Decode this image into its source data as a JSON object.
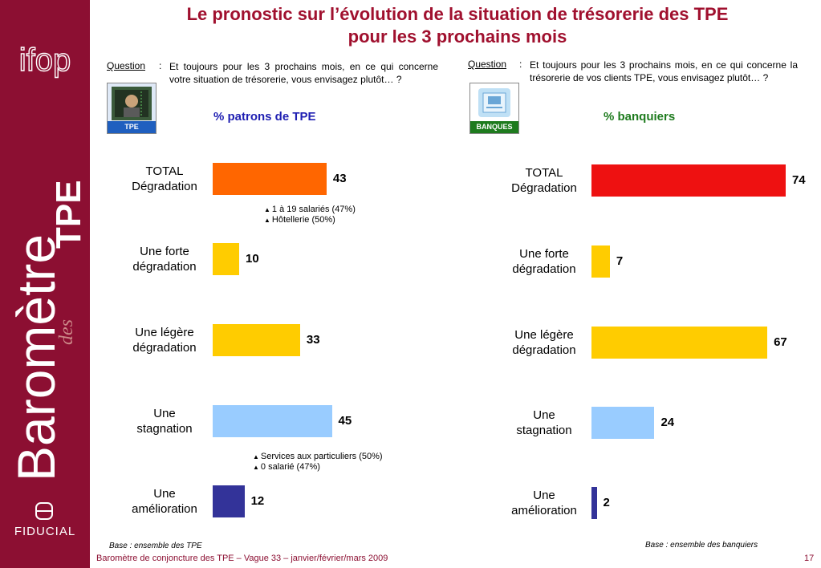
{
  "title_line1": "Le pronostic sur l’évolution de la situation de trésorerie des TPE",
  "title_line2": "pour les 3 prochains mois",
  "sidebar": {
    "ifop_logo": "ifop",
    "barometre_text": "Baromètre",
    "des_text": "des",
    "tpe_text": "TPE",
    "fiducial_text": "FIDUCIAL"
  },
  "left": {
    "question_label": "Question",
    "question_colon": ":",
    "question_text": "Et toujours pour les 3 prochains mois, en ce qui concerne votre situation de trésorerie, vous envisagez plutôt… ?",
    "logo_tag": "TPE",
    "section_title": "% patrons de TPE",
    "notes_1": [
      "1 à 19 salariés (47%)",
      "Hôtellerie (50%)"
    ],
    "notes_2": [
      "Services aux particuliers (50%)",
      "0 salarié (47%)"
    ],
    "base": "Base : ensemble des TPE"
  },
  "right": {
    "question_label": "Question",
    "question_colon": ":",
    "question_text": "Et toujours pour les 3 prochains mois, en ce qui concerne la trésorerie de vos clients TPE, vous envisagez plutôt… ?",
    "logo_tag": "BANQUES",
    "section_title": "% banquiers",
    "base": "Base : ensemble des banquiers"
  },
  "footer": "Baromètre de conjoncture des TPE – Vague 33 – janvier/février/mars 2009",
  "page_number": "17",
  "colors": {
    "brand": "#8c0f32",
    "left_total": "#ff6600",
    "right_total": "#ee1111",
    "degradation": "#ffcc00",
    "stagnation": "#99ccff",
    "amelioration": "#333399"
  },
  "chart_data": [
    {
      "type": "bar",
      "orientation": "horizontal",
      "title": "% patrons de TPE",
      "categories": [
        "TOTAL Dégradation",
        "Une forte dégradation",
        "Une légère dégradation",
        "Une stagnation",
        "Une amélioration"
      ],
      "category_lines": [
        [
          "TOTAL",
          "Dégradation"
        ],
        [
          "Une forte",
          "dégradation"
        ],
        [
          "Une légère",
          "dégradation"
        ],
        [
          "Une",
          "stagnation"
        ],
        [
          "Une",
          "amélioration"
        ]
      ],
      "values": [
        43,
        10,
        33,
        45,
        12
      ],
      "colors": [
        "#ff6600",
        "#ffcc00",
        "#ffcc00",
        "#99ccff",
        "#333399"
      ],
      "xlim": [
        0,
        100
      ]
    },
    {
      "type": "bar",
      "orientation": "horizontal",
      "title": "% banquiers",
      "categories": [
        "TOTAL Dégradation",
        "Une forte dégradation",
        "Une légère dégradation",
        "Une stagnation",
        "Une amélioration"
      ],
      "category_lines": [
        [
          "TOTAL",
          "Dégradation"
        ],
        [
          "Une forte",
          "dégradation"
        ],
        [
          "Une légère",
          "dégradation"
        ],
        [
          "Une",
          "stagnation"
        ],
        [
          "Une",
          "amélioration"
        ]
      ],
      "values": [
        74,
        7,
        67,
        24,
        2
      ],
      "colors": [
        "#ee1111",
        "#ffcc00",
        "#ffcc00",
        "#99ccff",
        "#333399"
      ],
      "xlim": [
        0,
        100
      ]
    }
  ]
}
